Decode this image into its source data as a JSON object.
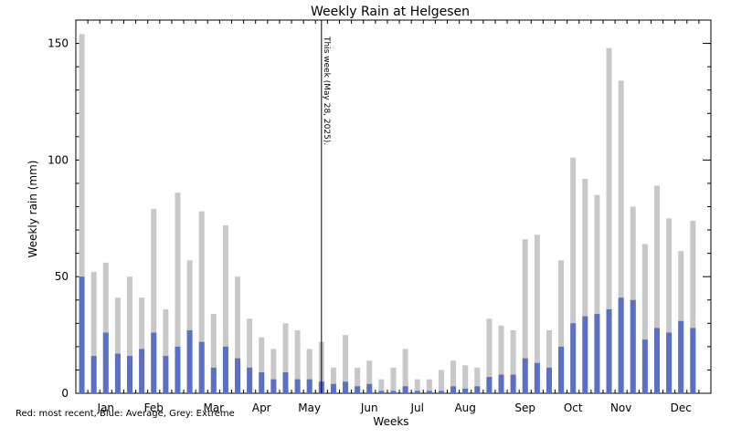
{
  "chart_data": {
    "type": "bar",
    "title": "Weekly Rain at Helgesen",
    "xlabel": "Weeks",
    "ylabel": "Weekly rain (mm)",
    "legend_text": "Red: most recent, Blue: Average, Grey: Extreme",
    "annotation": "This week (May 28, 2025).",
    "annotation_week": 20,
    "ylim": [
      0,
      160
    ],
    "yticks": [
      0,
      50,
      100,
      150
    ],
    "yticks_minor": [
      10,
      20,
      30,
      40,
      60,
      70,
      80,
      90,
      110,
      120,
      130,
      140,
      150
    ],
    "weeks": 53,
    "month_labels": [
      {
        "label": "Jan",
        "week": 2.5
      },
      {
        "label": "Feb",
        "week": 6.5
      },
      {
        "label": "Mar",
        "week": 11.5
      },
      {
        "label": "Apr",
        "week": 15.5
      },
      {
        "label": "May",
        "week": 19.5
      },
      {
        "label": "Jun",
        "week": 24.5
      },
      {
        "label": "Jul",
        "week": 28.5
      },
      {
        "label": "Aug",
        "week": 32.5
      },
      {
        "label": "Sep",
        "week": 37.5
      },
      {
        "label": "Oct",
        "week": 41.5
      },
      {
        "label": "Nov",
        "week": 45.5
      },
      {
        "label": "Dec",
        "week": 50.5
      }
    ],
    "series": [
      {
        "name": "Extreme",
        "color": "#c8c8c8",
        "values": [
          154,
          52,
          56,
          41,
          50,
          41,
          79,
          36,
          86,
          57,
          78,
          34,
          72,
          50,
          32,
          24,
          19,
          30,
          27,
          19,
          22,
          11,
          25,
          11,
          14,
          6,
          11,
          19,
          6,
          6,
          10,
          14,
          12,
          11,
          32,
          29,
          27,
          66,
          68,
          27,
          57,
          101,
          92,
          85,
          148,
          134,
          80,
          64,
          89,
          75,
          61,
          74
        ]
      },
      {
        "name": "Average",
        "color": "#5b70c4",
        "values": [
          50,
          16,
          26,
          17,
          16,
          19,
          26,
          16,
          20,
          27,
          22,
          11,
          20,
          15,
          11,
          9,
          6,
          9,
          6,
          6,
          5,
          4,
          5,
          3,
          4,
          1,
          1,
          3,
          1,
          1,
          1,
          3,
          2,
          3,
          7,
          8,
          8,
          15,
          13,
          11,
          20,
          30,
          33,
          34,
          36,
          41,
          40,
          23,
          28,
          26,
          31,
          28
        ]
      }
    ]
  }
}
